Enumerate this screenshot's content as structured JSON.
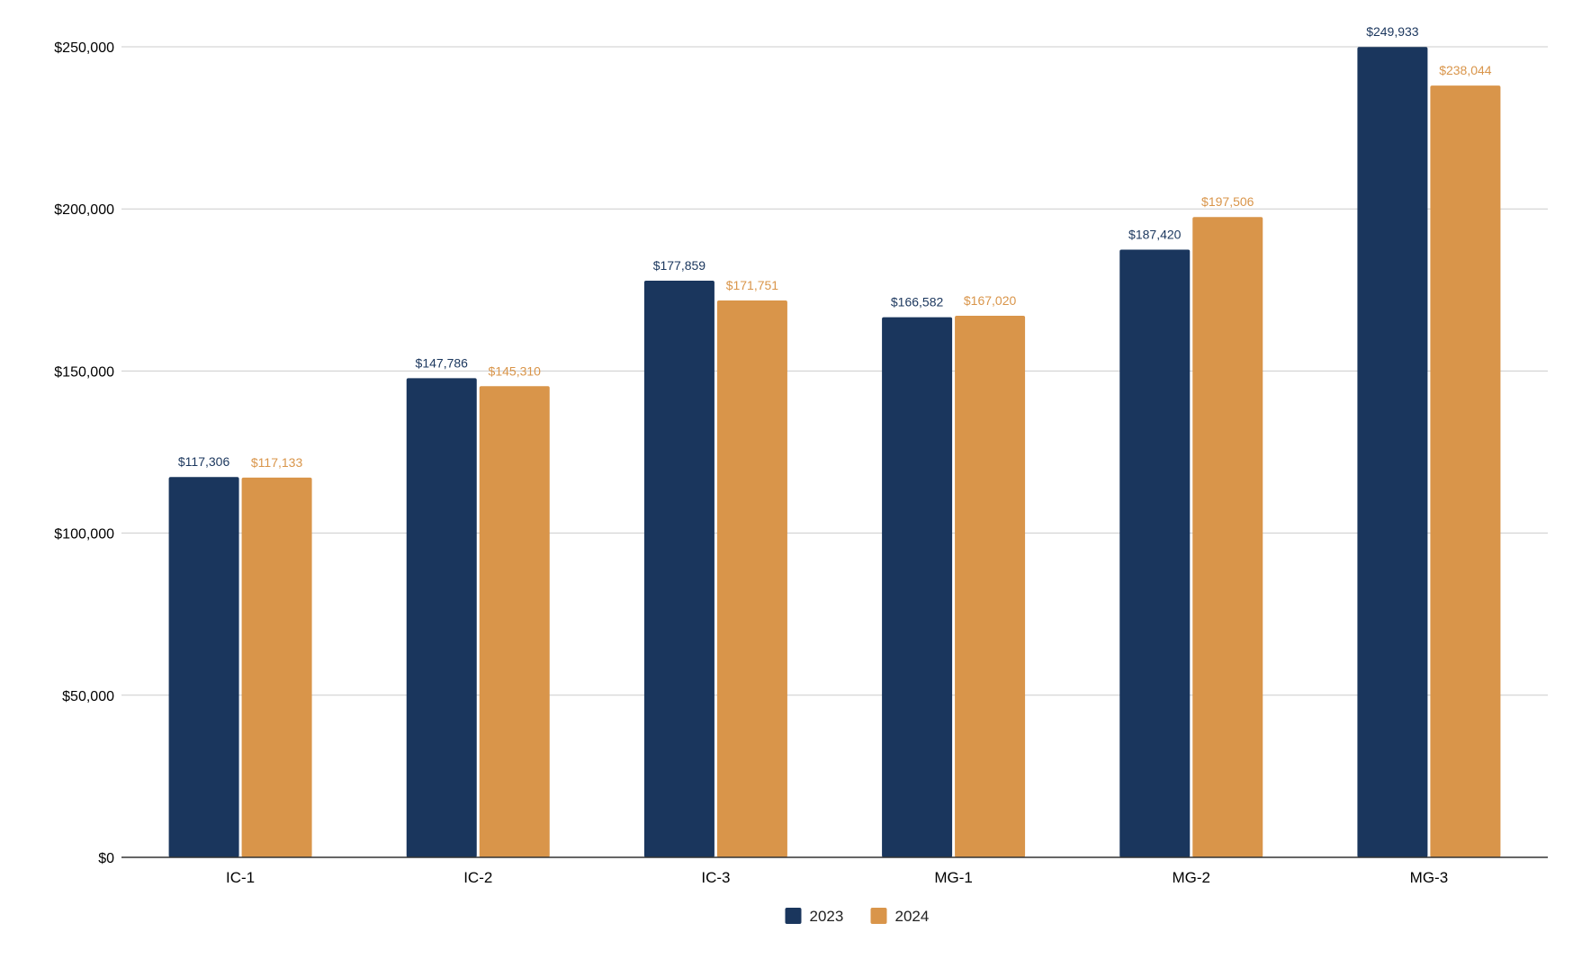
{
  "chart_data": {
    "type": "bar",
    "categories": [
      "IC-1",
      "IC-2",
      "IC-3",
      "MG-1",
      "MG-2",
      "MG-3"
    ],
    "series": [
      {
        "name": "2023",
        "color": "#1a365d",
        "values": [
          117306,
          147786,
          177859,
          166582,
          187420,
          249933
        ],
        "labels": [
          "$117,306",
          "$147,786",
          "$177,859",
          "$166,582",
          "$187,420",
          "$249,933"
        ]
      },
      {
        "name": "2024",
        "color": "#d9954a",
        "values": [
          117133,
          145310,
          171751,
          167020,
          197506,
          238044
        ],
        "labels": [
          "$117,133",
          "$145,310",
          "$171,751",
          "$167,020",
          "$197,506",
          "$238,044"
        ]
      }
    ],
    "y_ticks": [
      0,
      50000,
      100000,
      150000,
      200000,
      250000
    ],
    "y_tick_labels": [
      "$0",
      "$50,000",
      "$100,000",
      "$150,000",
      "$200,000",
      "$250,000"
    ],
    "ylim": [
      0,
      250000
    ],
    "title": "",
    "xlabel": "",
    "ylabel": "",
    "grid": true,
    "legend_position": "bottom-center",
    "gridline_color": "#cccccc",
    "axis_color": "#333333"
  }
}
